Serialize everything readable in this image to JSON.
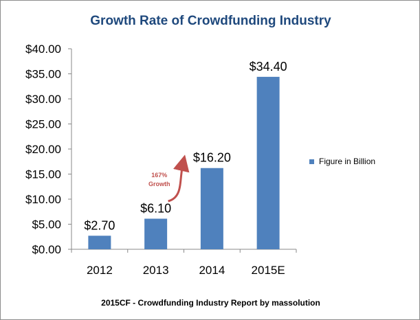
{
  "chart_data": {
    "type": "bar",
    "title": "Growth Rate of Crowdfunding Industry",
    "categories": [
      "2012",
      "2013",
      "2014",
      "2015E"
    ],
    "series": [
      {
        "name": "Figure in Billion",
        "values": [
          2.7,
          6.1,
          16.2,
          34.4
        ]
      }
    ],
    "data_labels": [
      "$2.70",
      "$6.10",
      "$16.20",
      "$34.40"
    ],
    "y_ticks": [
      0,
      5,
      10,
      15,
      20,
      25,
      30,
      35,
      40
    ],
    "y_tick_labels": [
      "$0.00",
      "$5.00",
      "$10.00",
      "$15.00",
      "$20.00",
      "$25.00",
      "$30.00",
      "$35.00",
      "$40.00"
    ],
    "ylim": [
      0,
      40
    ],
    "xlabel": "",
    "ylabel": "",
    "grid": false,
    "legend_position": "right",
    "annotation": {
      "line1": "167%",
      "line2": "Growth",
      "from_category": "2013",
      "to_category": "2014"
    },
    "source": "2015CF - Crowdfunding Industry Report by massolution",
    "colors": {
      "bar": "#4f81bd",
      "title": "#1f497d",
      "annotation": "#c0504d"
    }
  }
}
